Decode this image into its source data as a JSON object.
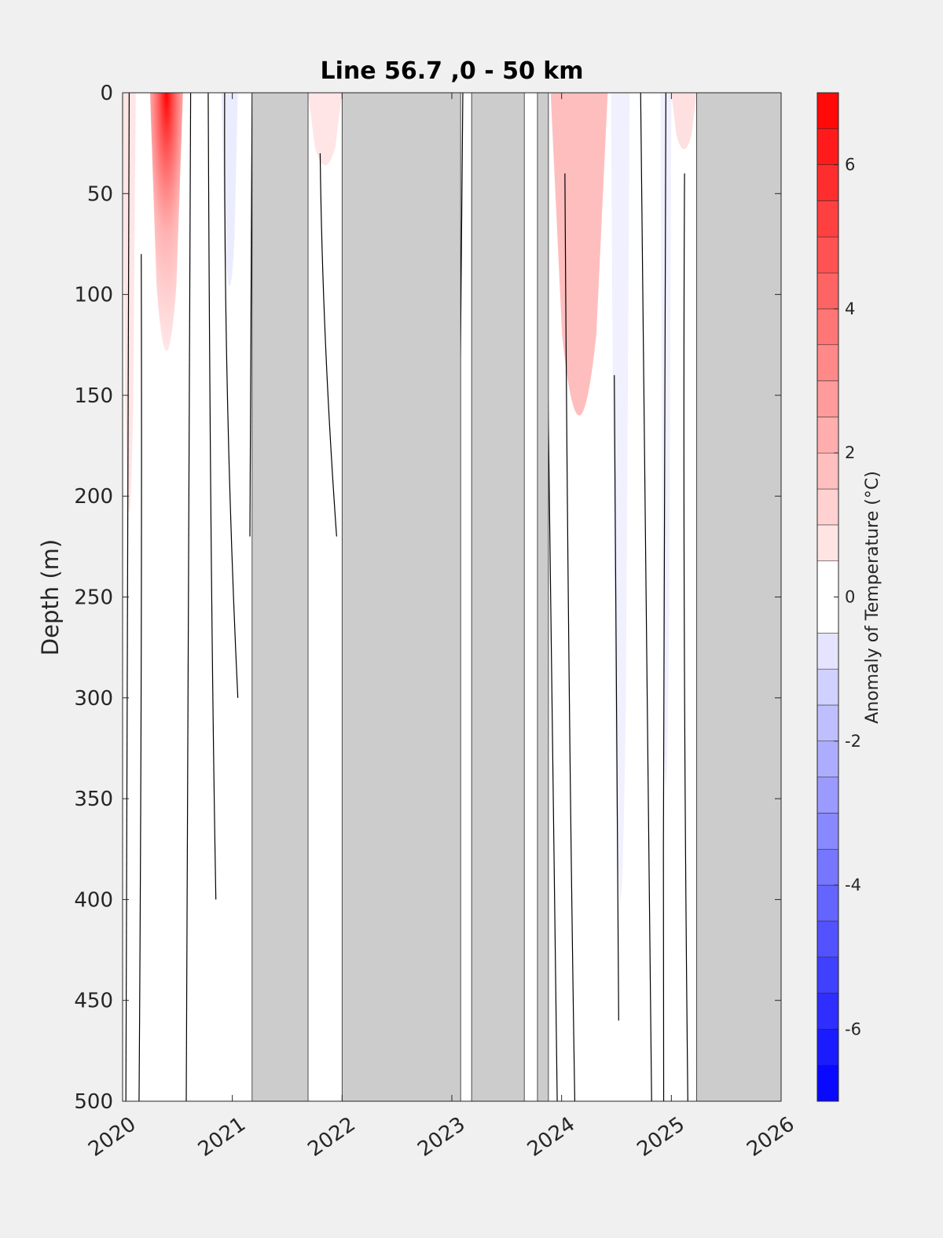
{
  "chart_data": {
    "type": "heatmap",
    "title": "Line 56.7 ,0 - 50 km",
    "xlabel": "",
    "ylabel": "Depth (m)",
    "xlim": [
      2020,
      2026
    ],
    "ylim": [
      0,
      500
    ],
    "y_reversed": true,
    "x_ticks": [
      "2020",
      "2021",
      "2022",
      "2023",
      "2024",
      "2025",
      "2026"
    ],
    "y_ticks": [
      "0",
      "50",
      "100",
      "150",
      "200",
      "250",
      "300",
      "350",
      "400",
      "450",
      "500"
    ],
    "colorbar": {
      "label": "Anomaly of Temperature (°C)",
      "range": [
        -7,
        7
      ],
      "levels": [
        -7,
        -6.5,
        -6,
        -5.5,
        -5,
        -4.5,
        -4,
        -3.5,
        -3,
        -2.5,
        -2,
        -1.5,
        -1,
        -0.5,
        0.5,
        1,
        1.5,
        2,
        2.5,
        3,
        3.5,
        4,
        4.5,
        5,
        5.5,
        6,
        6.5,
        7
      ],
      "tick_labels": [
        "6",
        "4",
        "2",
        "0",
        "-2",
        "-4",
        "-6"
      ],
      "tick_values": [
        6,
        4,
        2,
        0,
        -2,
        -4,
        -6
      ],
      "colormap": "blue-white-red",
      "neg_color": "#0000ff",
      "pos_color": "#ff0000",
      "zero_color": "#ffffff"
    },
    "no_data_color": "#cccccc",
    "no_data_periods": [
      [
        2021.18,
        2021.69
      ],
      [
        2022.0,
        2023.08
      ],
      [
        2023.18,
        2023.66
      ],
      [
        2023.78,
        2023.88
      ],
      [
        2025.23,
        2026.0
      ]
    ],
    "anomaly_features": [
      {
        "x_start": 2020.25,
        "x_end": 2020.55,
        "depth_max": 160,
        "peak_anomaly": 7.0,
        "sign": "warm"
      },
      {
        "x_start": 2020.0,
        "x_end": 2020.12,
        "depth_max": 260,
        "peak_anomaly": 1.0,
        "sign": "warm"
      },
      {
        "x_start": 2020.9,
        "x_end": 2021.05,
        "depth_max": 120,
        "peak_anomaly": -1.0,
        "sign": "cool"
      },
      {
        "x_start": 2021.69,
        "x_end": 2022.0,
        "depth_max": 45,
        "peak_anomaly": 1.0,
        "sign": "warm"
      },
      {
        "x_start": 2023.9,
        "x_end": 2024.42,
        "depth_max": 200,
        "peak_anomaly": 2.5,
        "sign": "warm"
      },
      {
        "x_start": 2024.45,
        "x_end": 2024.62,
        "depth_max": 500,
        "peak_anomaly": -0.8,
        "sign": "cool"
      },
      {
        "x_start": 2024.9,
        "x_end": 2025.0,
        "depth_max": 430,
        "peak_anomaly": -0.8,
        "sign": "cool"
      },
      {
        "x_start": 2025.0,
        "x_end": 2025.23,
        "depth_max": 35,
        "peak_anomaly": 1.2,
        "sign": "warm"
      }
    ],
    "grid": false
  }
}
